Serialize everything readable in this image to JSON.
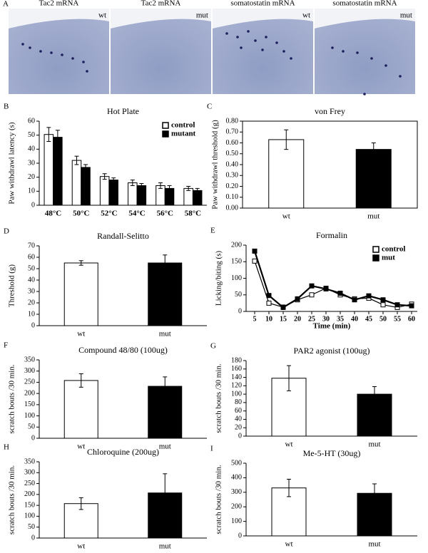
{
  "panel_a": {
    "letter": "A",
    "images": [
      {
        "label": "Tac2 mRNA",
        "genotype": "wt"
      },
      {
        "label": "Tac2 mRNA",
        "genotype": "mut"
      },
      {
        "label": "somatostatin mRNA",
        "genotype": "wt"
      },
      {
        "label": "somatostatin mRNA",
        "genotype": "mut"
      }
    ]
  },
  "chart_data": [
    {
      "type": "bar",
      "panel": "B",
      "title": "Hot Plate",
      "ylabel": "Paw withdrawl latency (s)",
      "categories": [
        "48°C",
        "50°C",
        "52°C",
        "54°C",
        "56°C",
        "58°C"
      ],
      "series": [
        {
          "name": "control",
          "color": "#ffffff",
          "values": [
            50.5,
            32,
            20.5,
            16,
            14,
            12
          ],
          "errors": [
            5,
            3,
            2,
            2,
            2,
            1.5
          ]
        },
        {
          "name": "mutant",
          "color": "#000000",
          "values": [
            48.5,
            27,
            18,
            14,
            12,
            10.5
          ],
          "errors": [
            5,
            2,
            1.5,
            1.5,
            2,
            1.5
          ]
        }
      ],
      "ylim": [
        0,
        60
      ],
      "yticks": [
        0,
        10,
        20,
        30,
        40,
        50,
        60
      ],
      "legend": "upper right",
      "box": false
    },
    {
      "type": "bar",
      "panel": "C",
      "title": "von Frey",
      "ylabel": "Paw withdrawl threshold (g)",
      "categories": [
        "wt",
        "mut"
      ],
      "values": [
        0.63,
        0.54
      ],
      "errors": [
        0.09,
        0.06
      ],
      "colors": [
        "#ffffff",
        "#000000"
      ],
      "ylim": [
        0,
        0.8
      ],
      "yticks": [
        {
          "value": 0,
          "label": "0.00"
        },
        {
          "value": 0.1,
          "label": "0.10"
        },
        {
          "value": 0.2,
          "label": "0.20"
        },
        {
          "value": 0.3,
          "label": "0.30"
        },
        {
          "value": 0.4,
          "label": "0.40"
        },
        {
          "value": 0.5,
          "label": "0.50"
        },
        {
          "value": 0.6,
          "label": "0.60"
        },
        {
          "value": 0.7,
          "label": "0.70"
        },
        {
          "value": 0.8,
          "label": "0.80"
        }
      ],
      "box": true
    },
    {
      "type": "bar",
      "panel": "D",
      "title": "Randall-Selitto",
      "ylabel": "Threshold (g)",
      "categories": [
        "wt",
        "mut"
      ],
      "values": [
        55,
        55
      ],
      "errors": [
        2,
        7
      ],
      "colors": [
        "#ffffff",
        "#000000"
      ],
      "ylim": [
        0,
        70
      ],
      "yticks": [
        0,
        10,
        20,
        30,
        40,
        50,
        60,
        70
      ],
      "box": false
    },
    {
      "type": "line",
      "panel": "E",
      "title": "Formalin",
      "ylabel": "Licking/biting (s)",
      "xlabel": "Time (min)",
      "x": [
        5,
        10,
        15,
        20,
        25,
        30,
        35,
        40,
        45,
        50,
        55,
        60
      ],
      "series": [
        {
          "name": "control",
          "color": "#ffffff",
          "values": [
            152,
            25,
            13,
            35,
            50,
            70,
            50,
            38,
            40,
            20,
            12,
            22
          ]
        },
        {
          "name": "mut",
          "color": "#000000",
          "values": [
            182,
            48,
            12,
            38,
            77,
            68,
            55,
            35,
            47,
            35,
            20,
            17
          ]
        }
      ],
      "xlim": [
        2,
        62
      ],
      "xticks": [
        5,
        10,
        15,
        20,
        25,
        30,
        35,
        40,
        45,
        50,
        55,
        60
      ],
      "ylim": [
        0,
        200
      ],
      "yticks": [
        0,
        50,
        100,
        150,
        200
      ],
      "legend": "upper right",
      "box": false
    },
    {
      "type": "bar",
      "panel": "F",
      "title": "Compound 48/80 (100ug)",
      "ylabel": "scratch bouts /30 min.",
      "categories": [
        "wt",
        "mut"
      ],
      "values": [
        258,
        232
      ],
      "errors": [
        30,
        42
      ],
      "colors": [
        "#ffffff",
        "#000000"
      ],
      "ylim": [
        0,
        350
      ],
      "yticks": [
        0,
        50,
        100,
        150,
        200,
        250,
        300,
        350
      ],
      "box": false
    },
    {
      "type": "bar",
      "panel": "G",
      "title": "PAR2 agonist (100ug)",
      "ylabel": "scratch bouts /30 min.",
      "categories": [
        "wt",
        "mut"
      ],
      "values": [
        138,
        100
      ],
      "errors": [
        30,
        18
      ],
      "colors": [
        "#ffffff",
        "#000000"
      ],
      "ylim": [
        0,
        180
      ],
      "yticks": [
        0,
        20,
        40,
        60,
        80,
        100,
        120,
        140,
        160,
        180
      ],
      "box": false
    },
    {
      "type": "bar",
      "panel": "H",
      "title": "Chloroquine (200ug)",
      "ylabel": "scratch bouts /30 min.",
      "categories": [
        "wt",
        "mut"
      ],
      "values": [
        158,
        207
      ],
      "errors": [
        27,
        88
      ],
      "colors": [
        "#ffffff",
        "#000000"
      ],
      "ylim": [
        0,
        350
      ],
      "yticks": [
        0,
        50,
        100,
        150,
        200,
        250,
        300,
        350
      ],
      "box": false
    },
    {
      "type": "bar",
      "panel": "I",
      "title": "Me-5-HT (30ug)",
      "ylabel": "scratch bouts /30 min.",
      "categories": [
        "wt",
        "mut"
      ],
      "values": [
        330,
        293
      ],
      "errors": [
        60,
        65
      ],
      "colors": [
        "#ffffff",
        "#000000"
      ],
      "ylim": [
        0,
        500
      ],
      "yticks": [
        0,
        100,
        200,
        300,
        400,
        500
      ],
      "box": false
    }
  ]
}
